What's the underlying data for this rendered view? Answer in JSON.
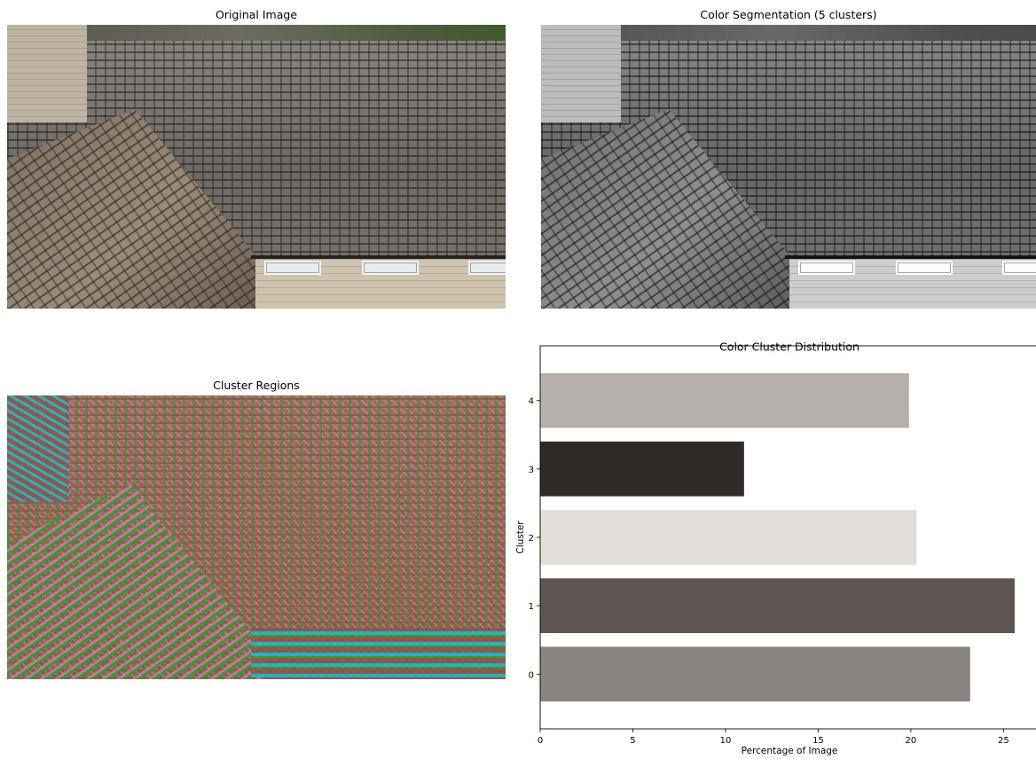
{
  "panels": {
    "original_title": "Original Image",
    "segmentation_title": "Color Segmentation (5 clusters)",
    "regions_title": "Cluster Regions"
  },
  "chart_data": {
    "type": "bar",
    "orientation": "horizontal",
    "title": "Color Cluster Distribution",
    "xlabel": "Percentage of Image",
    "ylabel": "Cluster",
    "categories": [
      "0",
      "1",
      "2",
      "3",
      "4"
    ],
    "values": [
      23.2,
      25.6,
      20.3,
      11.0,
      19.9
    ],
    "colors": [
      "#8a8480",
      "#5f5452",
      "#e2deda",
      "#2f2b29",
      "#b5b0ac"
    ],
    "xticks": [
      0,
      5,
      10,
      15,
      20,
      25
    ],
    "xlim": [
      0,
      26.8
    ],
    "grid": false
  }
}
